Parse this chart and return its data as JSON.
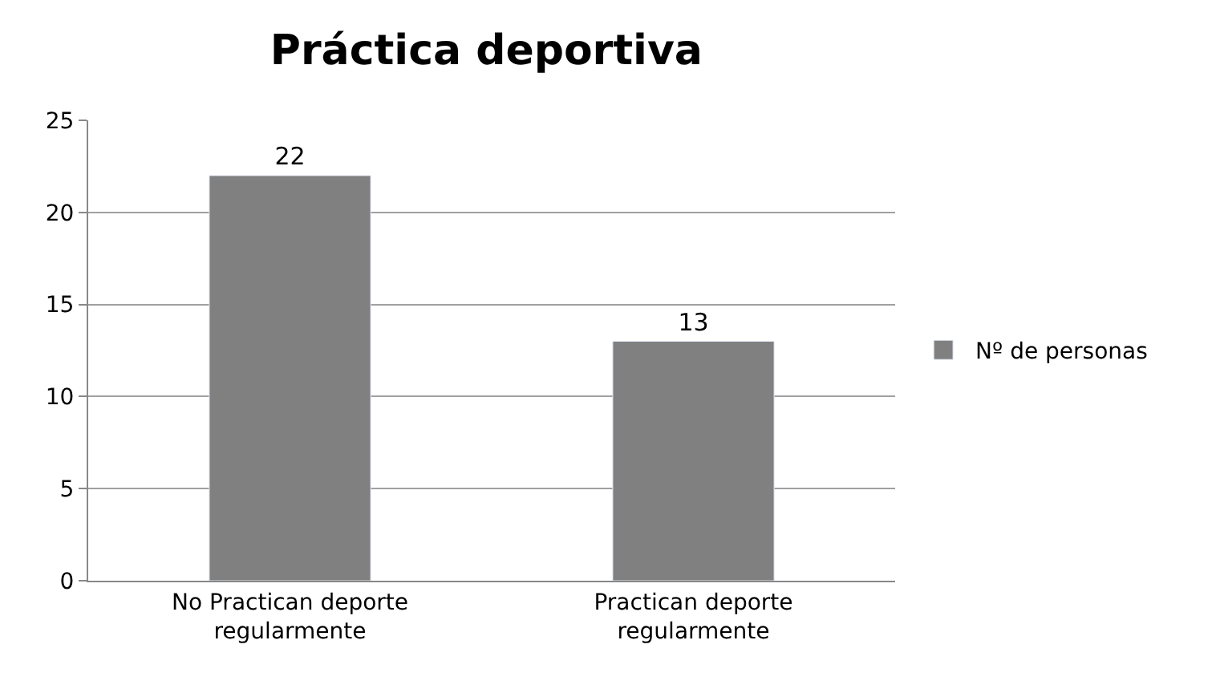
{
  "chart_data": {
    "type": "bar",
    "title": "Práctica deportiva",
    "categories": [
      "No Practican deporte regularmente",
      "Practican deporte regularmente"
    ],
    "series": [
      {
        "name": "Nº de personas",
        "color": "#808080",
        "values": [
          22,
          13
        ]
      }
    ],
    "ylim": [
      0,
      25
    ],
    "yticks": [
      0,
      5,
      10,
      15,
      20,
      25
    ],
    "grid": "y",
    "legend": "right",
    "data_labels": true
  }
}
